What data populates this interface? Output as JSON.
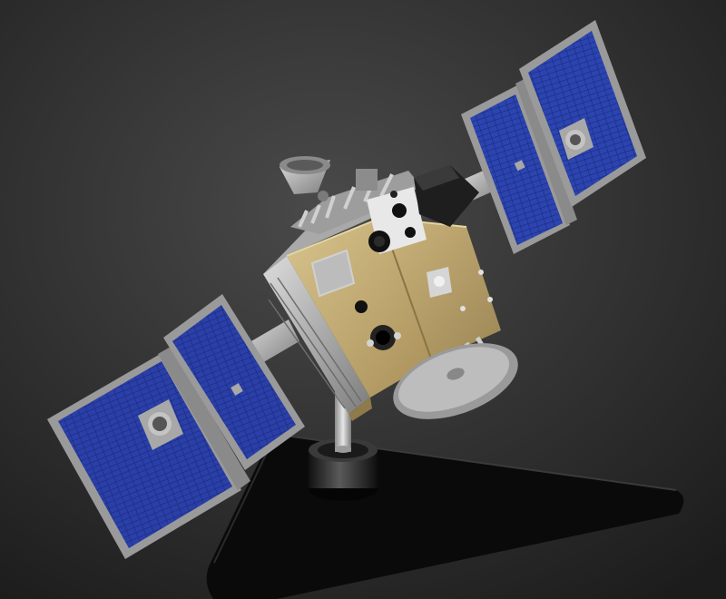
{
  "photo": {
    "subject": "satellite-model",
    "colors": {
      "backdrop_center": "#4a4a4a",
      "backdrop_edge": "#1c1c1c",
      "solar_cell": "#2a3fa8",
      "solar_cell_dark": "#1b2a7c",
      "panel_frame": "#9a9a9a",
      "gold_foil": "#c8b27a",
      "gold_foil_dark": "#9c8655",
      "silver": "#b8b8b8",
      "silver_dark": "#7d7d7d",
      "stand_base": "#0a0a0a",
      "stand_post": "#c9c9c9"
    }
  }
}
